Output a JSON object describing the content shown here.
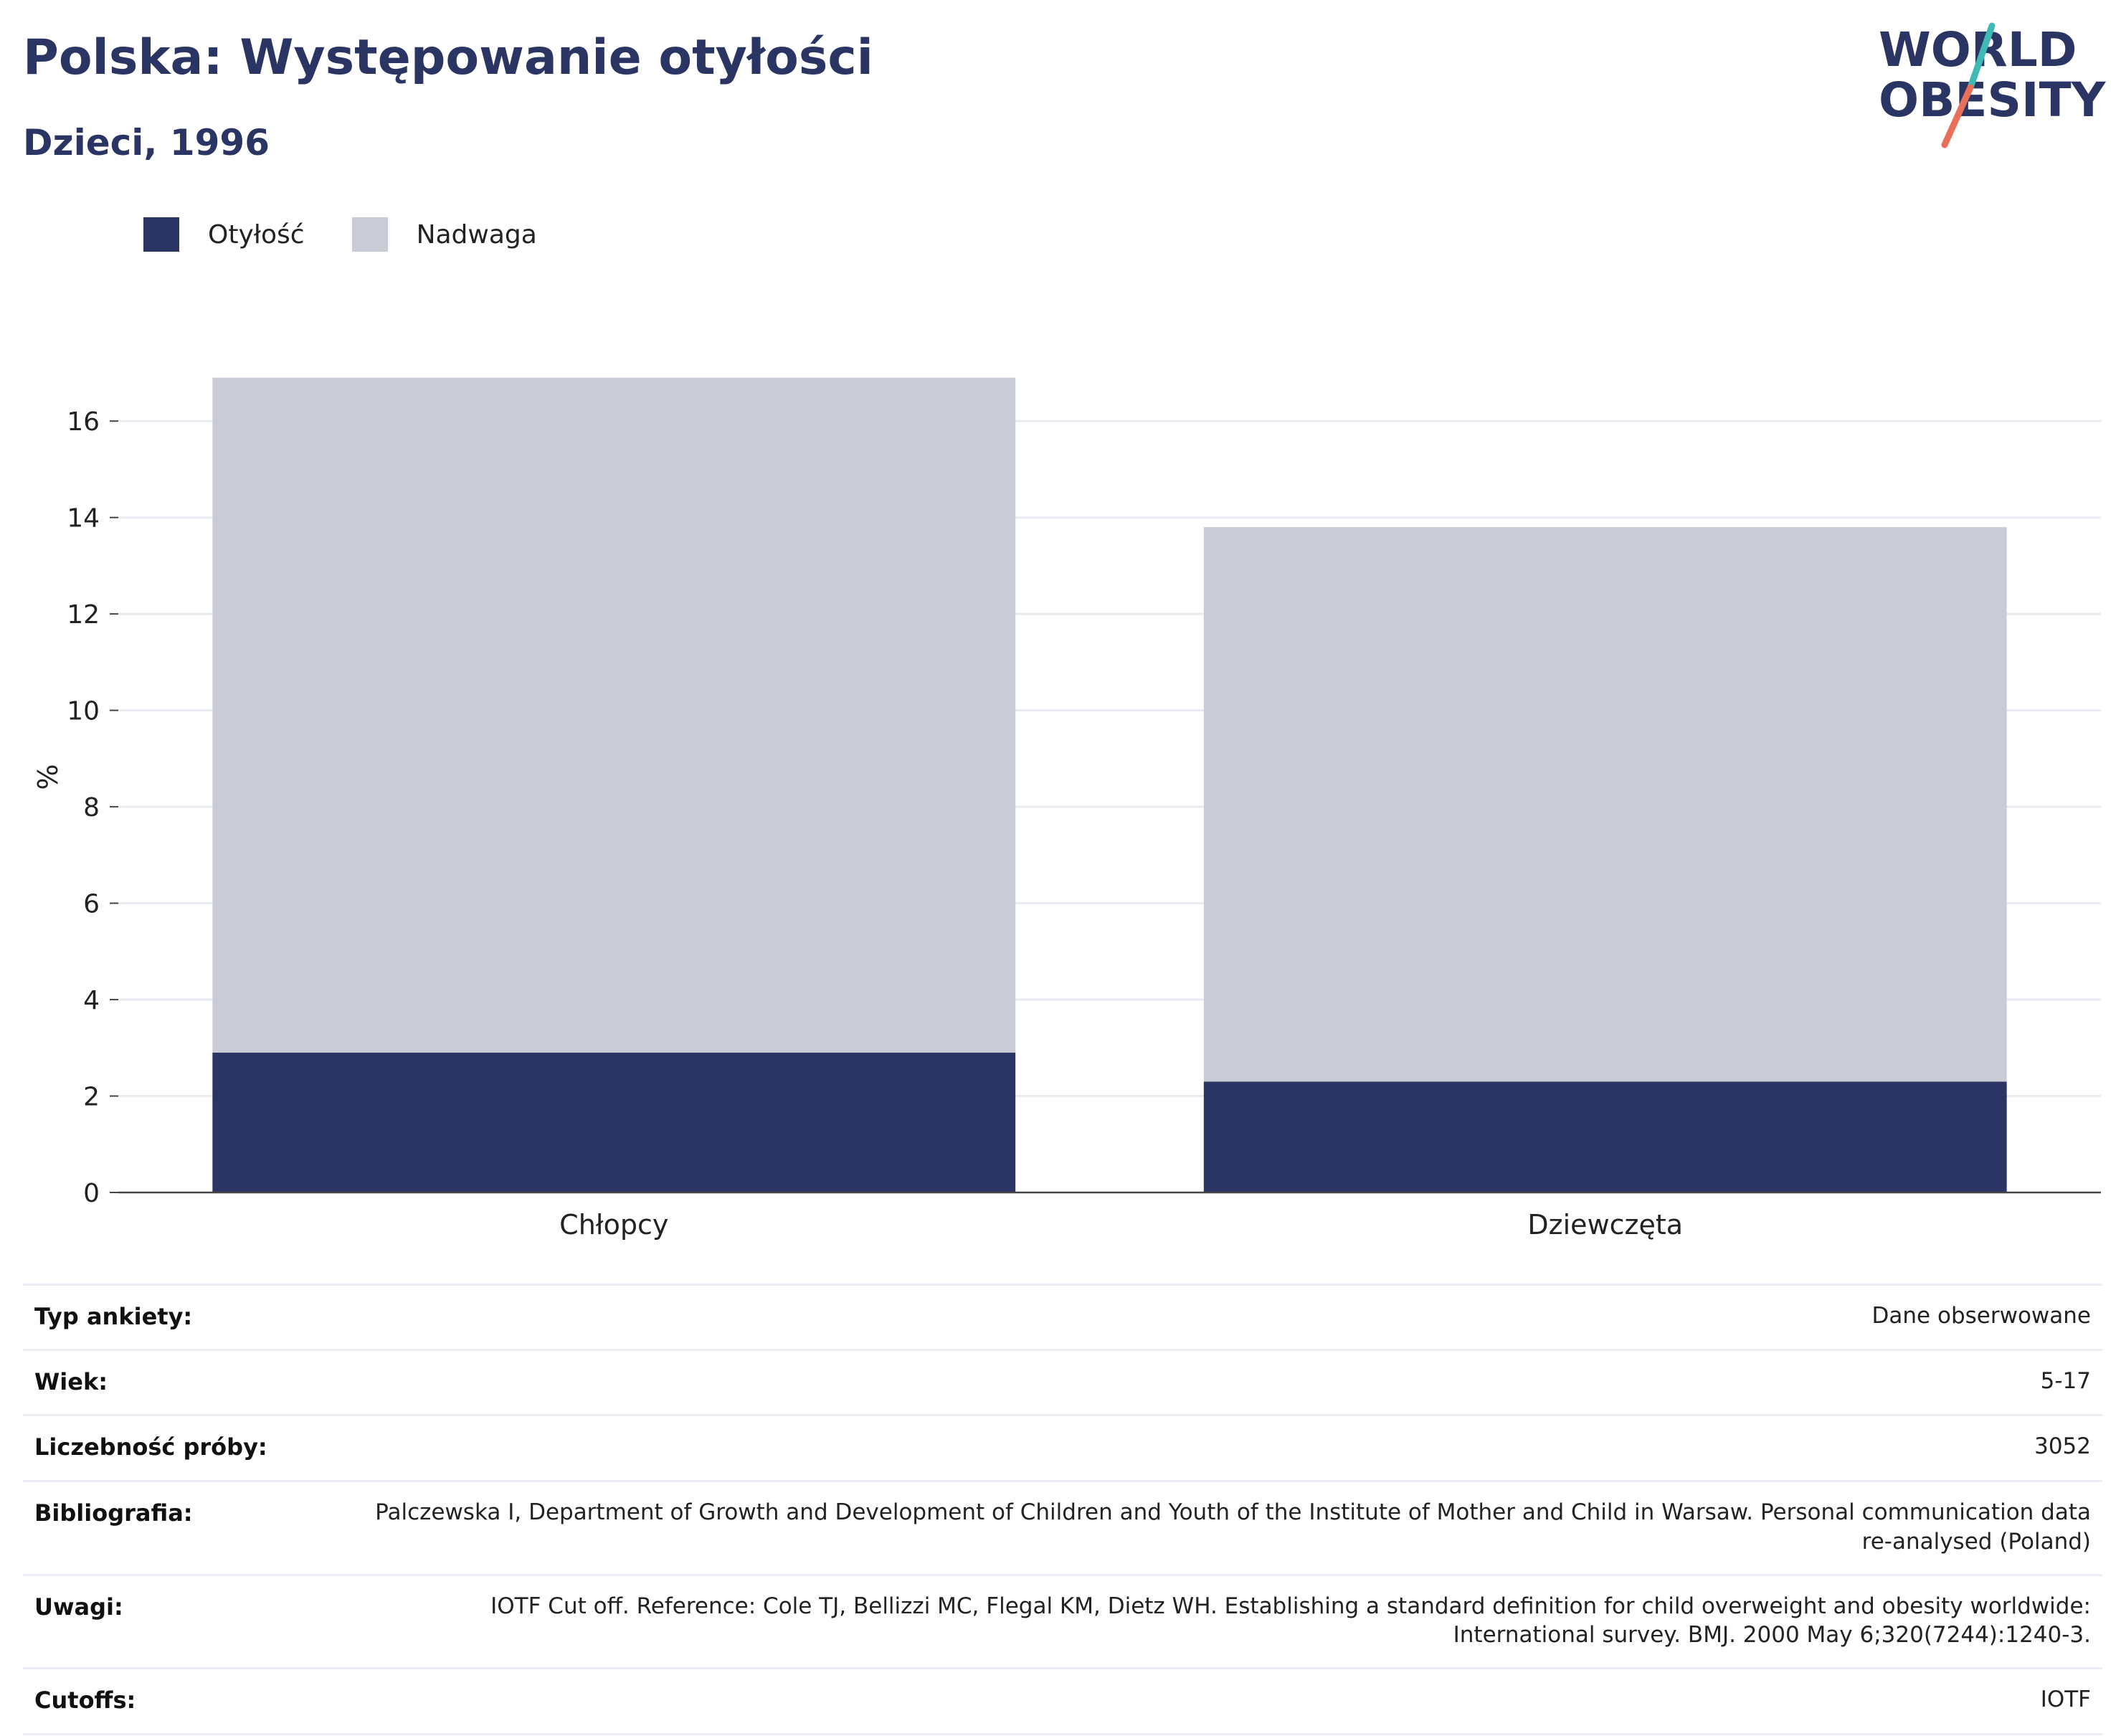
{
  "header": {
    "title": "Polska: Występowanie otyłości",
    "subtitle": "Dzieci, 1996"
  },
  "logo": {
    "line1": "WORLD",
    "line2": "OBESITY",
    "color_text": "#2a3563",
    "color_slash_top": "#3fb9b5",
    "color_slash_bottom": "#e8705a"
  },
  "legend": [
    {
      "label": "Otyłość",
      "color": "#2a3563"
    },
    {
      "label": "Nadwaga",
      "color": "#c9cbd7"
    }
  ],
  "chart_data": {
    "type": "bar",
    "stacked": true,
    "categories": [
      "Chłopcy",
      "Dziewczęta"
    ],
    "series": [
      {
        "name": "Otyłość",
        "values": [
          2.9,
          2.3
        ],
        "color": "#2a3563"
      },
      {
        "name": "Nadwaga",
        "values": [
          14.0,
          11.5
        ],
        "color": "#c9cbd7"
      }
    ],
    "ylabel": "%",
    "ylim": [
      0,
      17
    ],
    "yticks": [
      0,
      2,
      4,
      6,
      8,
      10,
      12,
      14,
      16
    ],
    "grid": true,
    "legend_position": "top-left"
  },
  "info": [
    {
      "label": "Typ ankiety:",
      "value": "Dane obserwowane"
    },
    {
      "label": "Wiek:",
      "value": "5-17"
    },
    {
      "label": "Liczebność próby:",
      "value": "3052"
    },
    {
      "label": "Bibliografia:",
      "value": "Palczewska I, Department of Growth and Development of Children and Youth of the Institute of Mother and Child in Warsaw. Personal communication data re-analysed (Poland)"
    },
    {
      "label": "Uwagi:",
      "value": "IOTF Cut off. Reference: Cole TJ, Bellizzi MC, Flegal KM, Dietz WH. Establishing a standard definition for child overweight and obesity worldwide: International survey. BMJ. 2000 May 6;320(7244):1240-3."
    },
    {
      "label": "Cutoffs:",
      "value": "IOTF"
    }
  ]
}
